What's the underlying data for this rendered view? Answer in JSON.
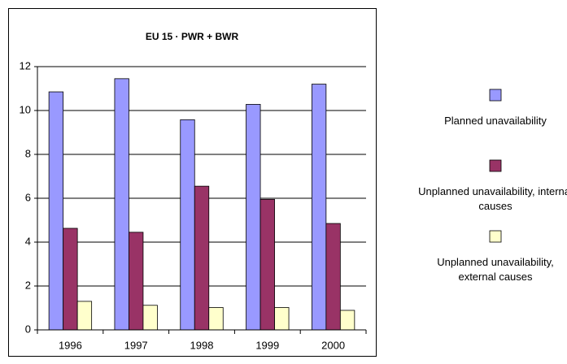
{
  "chart_data": {
    "type": "bar",
    "title": "EU 15  ·  PWR + BWR",
    "categories": [
      "1996",
      "1997",
      "1998",
      "1999",
      "2000"
    ],
    "series": [
      {
        "name": "Planned unavailability",
        "color": "#9999ff",
        "values": [
          10.85,
          11.45,
          9.58,
          10.28,
          11.2
        ]
      },
      {
        "name": "Unplanned unavailability, internal causes",
        "color": "#993366",
        "values": [
          4.63,
          4.45,
          6.55,
          5.95,
          4.85
        ]
      },
      {
        "name": "Unplanned unavailability, external causes",
        "color": "#ffffcc",
        "values": [
          1.3,
          1.12,
          1.02,
          1.02,
          0.89
        ]
      }
    ],
    "ylim": [
      0,
      12
    ],
    "yticks": [
      0,
      2,
      4,
      6,
      8,
      10,
      12
    ],
    "grid": true,
    "legend": "right"
  }
}
